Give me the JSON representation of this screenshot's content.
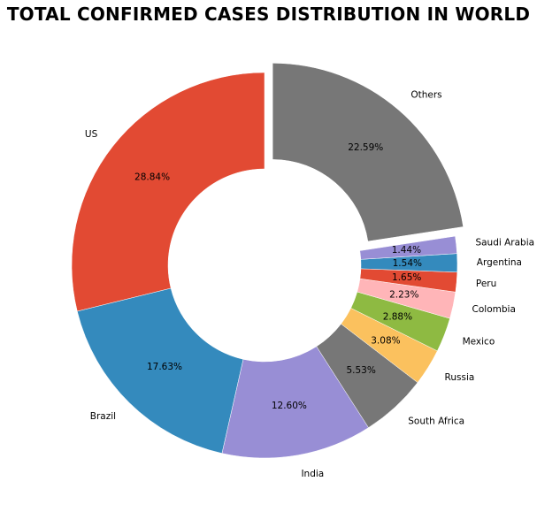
{
  "chart_data": {
    "type": "pie",
    "title": "TOTAL CONFIRMED CASES DISTRIBUTION IN WORLD",
    "donut": true,
    "slices": [
      {
        "name": "US",
        "value": 28.84,
        "pct_label": "28.84%",
        "color": "#e24a33",
        "explode": false
      },
      {
        "name": "Brazil",
        "value": 17.63,
        "pct_label": "17.63%",
        "color": "#348abd",
        "explode": false
      },
      {
        "name": "India",
        "value": 12.6,
        "pct_label": "12.60%",
        "color": "#988ed5",
        "explode": false
      },
      {
        "name": "South Africa",
        "value": 5.53,
        "pct_label": "5.53%",
        "color": "#777777",
        "explode": false
      },
      {
        "name": "Russia",
        "value": 3.08,
        "pct_label": "3.08%",
        "color": "#fbc15e",
        "explode": false
      },
      {
        "name": "Mexico",
        "value": 2.88,
        "pct_label": "2.88%",
        "color": "#8eba42",
        "explode": false
      },
      {
        "name": "Colombia",
        "value": 2.23,
        "pct_label": "2.23%",
        "color": "#ffb5b8",
        "explode": false
      },
      {
        "name": "Peru",
        "value": 1.65,
        "pct_label": "1.65%",
        "color": "#e24a33",
        "explode": false
      },
      {
        "name": "Argentina",
        "value": 1.54,
        "pct_label": "1.54%",
        "color": "#348abd",
        "explode": false
      },
      {
        "name": "Saudi Arabia",
        "value": 1.44,
        "pct_label": "1.44%",
        "color": "#988ed5",
        "explode": false
      },
      {
        "name": "Others",
        "value": 22.59,
        "pct_label": "22.59%",
        "color": "#777777",
        "explode": true
      }
    ]
  }
}
